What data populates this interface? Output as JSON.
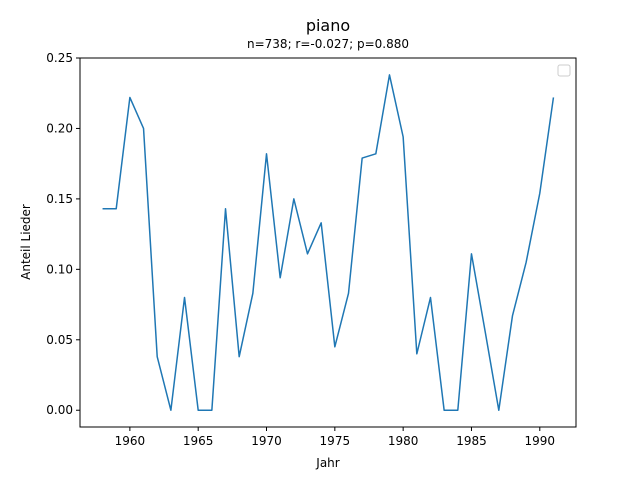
{
  "chart_data": {
    "type": "line",
    "title": "piano",
    "subtitle": "n=738; r=-0.027; p=0.880",
    "xlabel": "Jahr",
    "ylabel": "Anteil Lieder",
    "xlim": [
      1956.35,
      1992.65
    ],
    "ylim": [
      -0.0119,
      0.25
    ],
    "x_ticks": [
      1960,
      1965,
      1970,
      1975,
      1980,
      1985,
      1990
    ],
    "x_tick_labels": [
      "1960",
      "1965",
      "1970",
      "1975",
      "1980",
      "1985",
      "1990"
    ],
    "y_ticks": [
      0.0,
      0.05,
      0.1,
      0.15,
      0.2,
      0.25
    ],
    "y_tick_labels": [
      "0.00",
      "0.05",
      "0.10",
      "0.15",
      "0.20",
      "0.25"
    ],
    "grid": false,
    "legend": "top-right (empty)",
    "series": [
      {
        "color": "#1f77b4",
        "x": [
          1958,
          1959,
          1960,
          1961,
          1962,
          1963,
          1964,
          1965,
          1966,
          1967,
          1968,
          1969,
          1970,
          1971,
          1972,
          1973,
          1974,
          1975,
          1976,
          1977,
          1978,
          1979,
          1980,
          1981,
          1982,
          1983,
          1984,
          1985,
          1986,
          1987,
          1988,
          1989,
          1990,
          1991
        ],
        "y": [
          0.143,
          0.143,
          0.222,
          0.2,
          0.038,
          0.0,
          0.08,
          0.0,
          0.0,
          0.143,
          0.038,
          0.083,
          0.182,
          0.094,
          0.15,
          0.111,
          0.133,
          0.045,
          0.083,
          0.179,
          0.182,
          0.238,
          0.194,
          0.04,
          0.08,
          0.0,
          0.0,
          0.111,
          0.056,
          0.0,
          0.067,
          0.105,
          0.154,
          0.222
        ]
      }
    ]
  }
}
